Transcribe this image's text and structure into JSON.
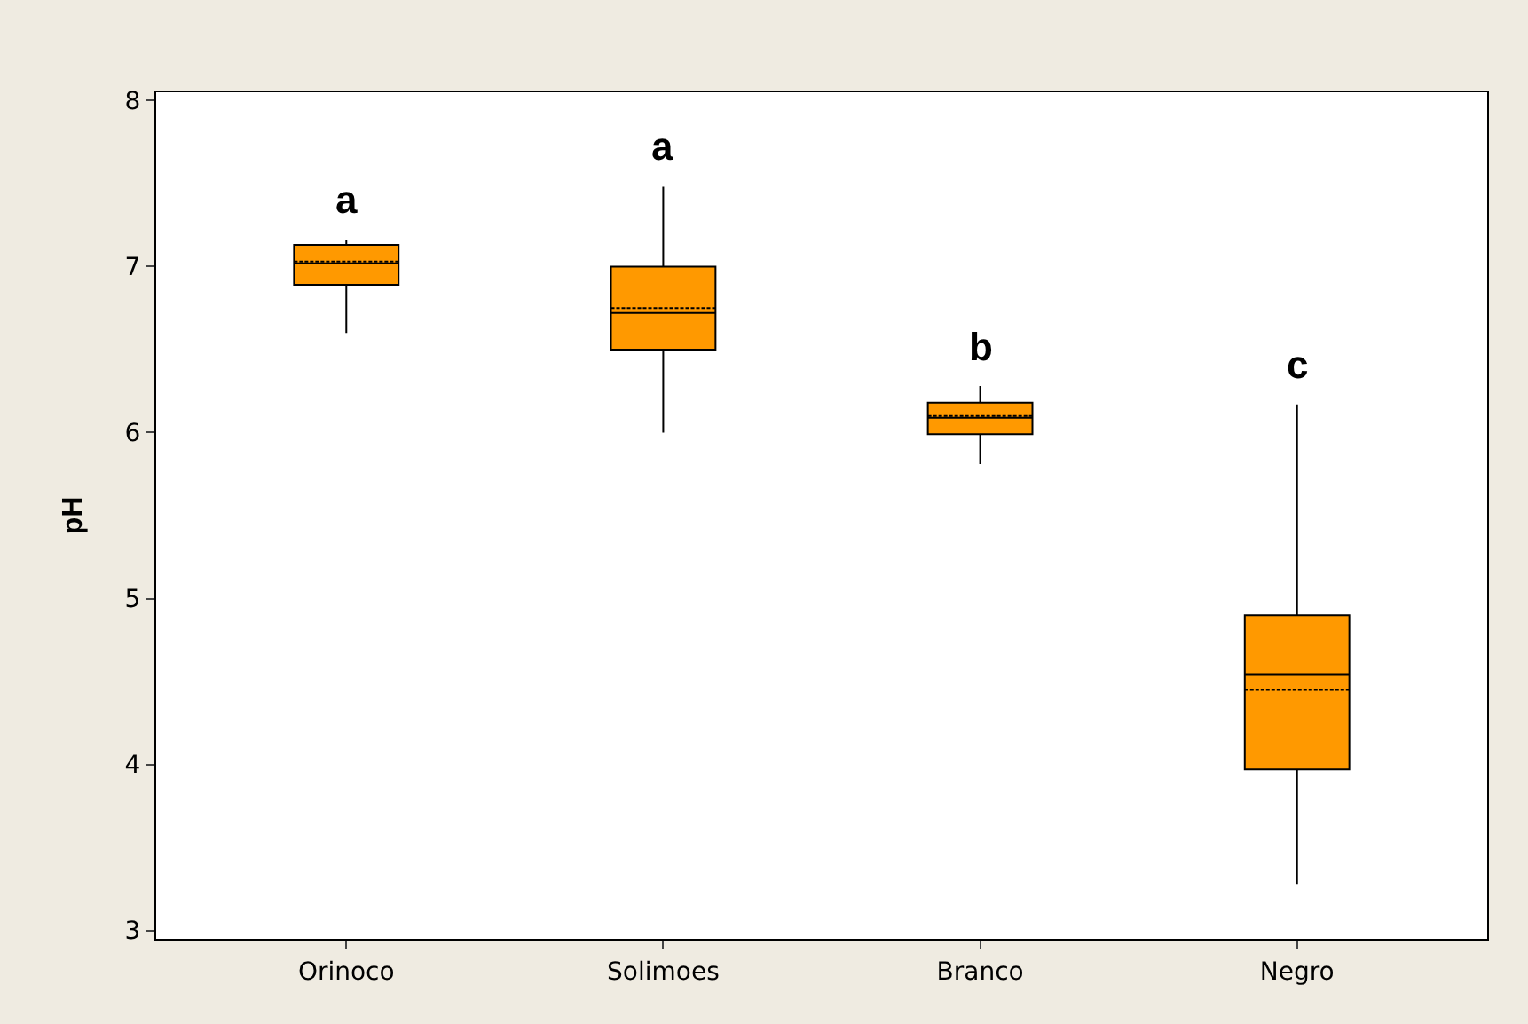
{
  "chart_data": {
    "type": "box",
    "ylabel": "pH",
    "categories": [
      "Orinoco",
      "Solimoes",
      "Branco",
      "Negro"
    ],
    "boxes": [
      {
        "low": 6.6,
        "q1": 6.89,
        "median": 7.02,
        "q3": 7.13,
        "high": 7.16,
        "mean": 7.03
      },
      {
        "low": 6.0,
        "q1": 6.5,
        "median": 6.72,
        "q3": 7.0,
        "high": 7.48,
        "mean": 6.75
      },
      {
        "low": 5.81,
        "q1": 5.99,
        "median": 6.09,
        "q3": 6.18,
        "high": 6.28,
        "mean": 6.1
      },
      {
        "low": 3.28,
        "q1": 3.97,
        "median": 4.54,
        "q3": 4.9,
        "high": 6.17,
        "mean": 4.45
      }
    ],
    "color": "#ff9900",
    "ylim": [
      2.95,
      8.05
    ],
    "yticks": [
      3,
      4,
      5,
      6,
      7,
      8
    ],
    "grid": false,
    "annotations": [
      "a",
      "a",
      "b",
      "c"
    ]
  }
}
